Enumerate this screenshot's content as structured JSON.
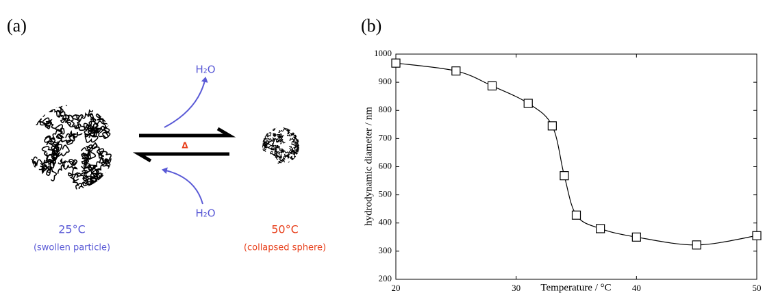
{
  "panel_a": {
    "label": "(a)",
    "water_out": "H₂O",
    "water_in": "H₂O",
    "heat": "Δ",
    "left_temp": "25°C",
    "left_state": "(swollen particle)",
    "right_temp": "50°C",
    "right_state": "(collapsed sphere)"
  },
  "panel_b": {
    "label": "(b)"
  },
  "chart_data": {
    "type": "line",
    "x_label": "Temperature / °C",
    "y_label": "hydrodynamic diameter / nm",
    "x": [
      20,
      25,
      28,
      31,
      33,
      34,
      35,
      37,
      40,
      45,
      50
    ],
    "values": [
      968,
      940,
      887,
      825,
      745,
      568,
      428,
      380,
      350,
      322,
      355
    ],
    "color": "#000000",
    "xlim": [
      20,
      50
    ],
    "xticks": [
      20,
      30,
      40,
      50
    ],
    "ylim": [
      200,
      1000
    ],
    "yticks": [
      200,
      300,
      400,
      500,
      600,
      700,
      800,
      900,
      1000
    ]
  }
}
